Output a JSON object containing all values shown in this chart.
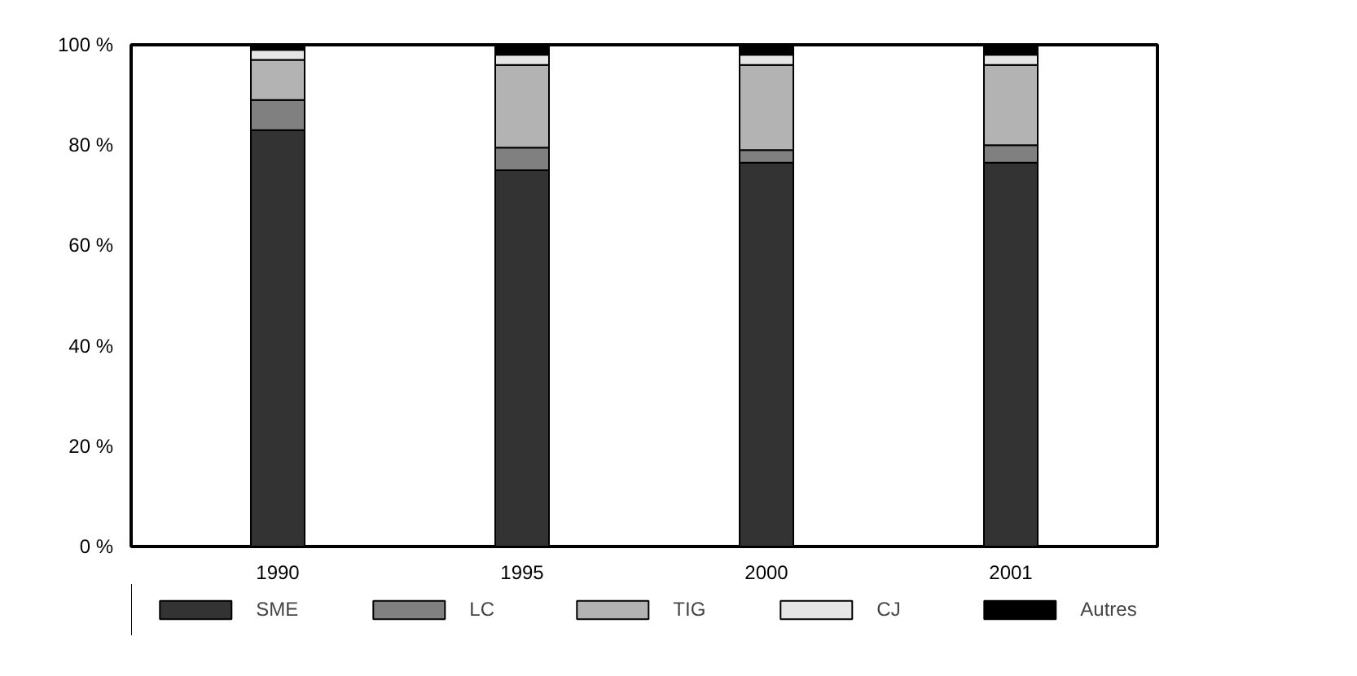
{
  "chart_data": {
    "type": "bar",
    "stacked": true,
    "categories": [
      "1990",
      "1995",
      "2000",
      "2001"
    ],
    "series": [
      {
        "name": "SME",
        "color": "#333333",
        "values": [
          83,
          75,
          76.5,
          76.5
        ]
      },
      {
        "name": "LC",
        "color": "#808080",
        "values": [
          6,
          4.5,
          2.5,
          3.5
        ]
      },
      {
        "name": "TIG",
        "color": "#b3b3b3",
        "values": [
          8,
          16.5,
          17,
          16
        ]
      },
      {
        "name": "CJ",
        "color": "#e6e6e6",
        "values": [
          2,
          2,
          2,
          2
        ]
      },
      {
        "name": "Autres",
        "color": "#000000",
        "values": [
          1,
          2,
          2,
          2
        ]
      }
    ],
    "ylim": [
      0,
      100
    ],
    "yticks": [
      {
        "value": 0,
        "label": "0 %"
      },
      {
        "value": 20,
        "label": "20 %"
      },
      {
        "value": 40,
        "label": "40 %"
      },
      {
        "value": 60,
        "label": "60 %"
      },
      {
        "value": 80,
        "label": "80 %"
      },
      {
        "value": 100,
        "label": "100 %"
      }
    ],
    "grid": false,
    "legend": "bottom"
  }
}
